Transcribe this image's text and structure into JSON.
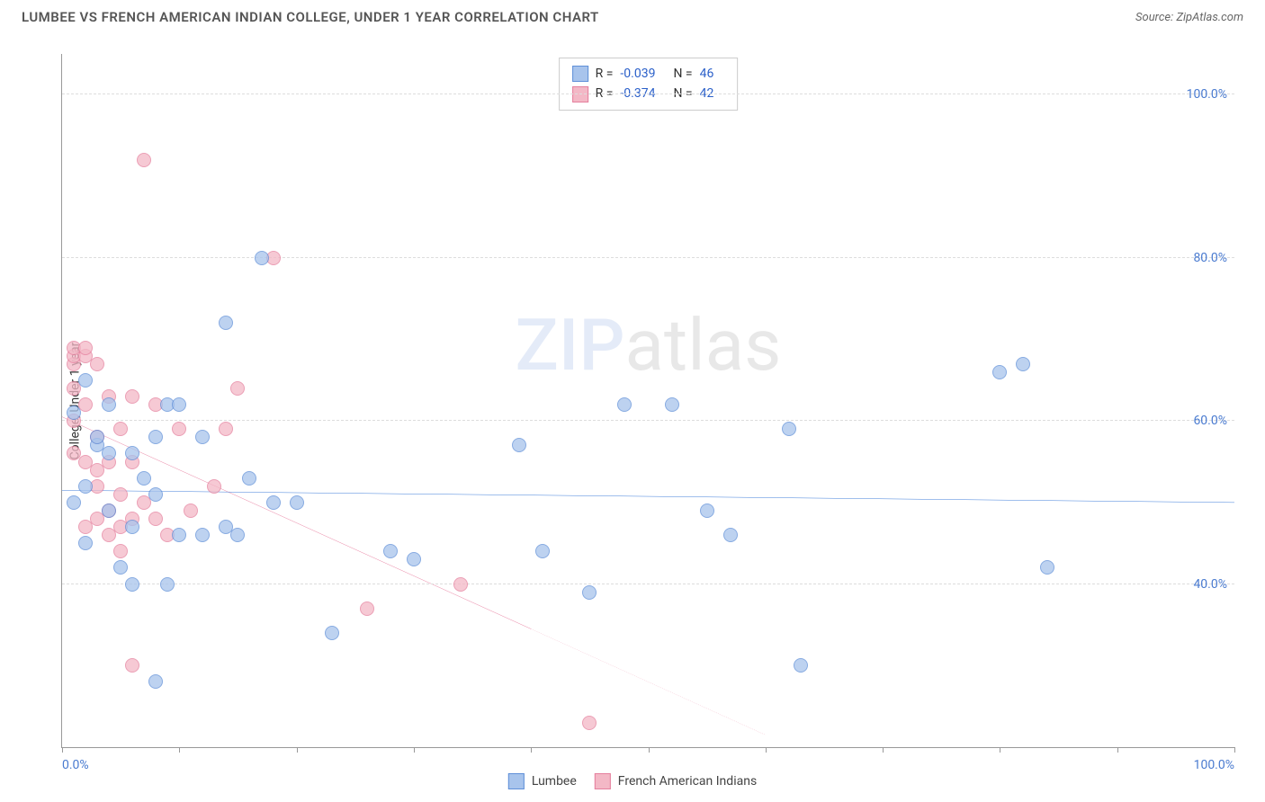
{
  "header": {
    "title": "LUMBEE VS FRENCH AMERICAN INDIAN COLLEGE, UNDER 1 YEAR CORRELATION CHART",
    "source_prefix": "Source: ",
    "source_name": "ZipAtlas.com"
  },
  "chart": {
    "type": "scatter",
    "ylabel": "College, Under 1 year",
    "xlim": [
      0,
      100
    ],
    "ylim": [
      20,
      105
    ],
    "y_gridlines": [
      40,
      60,
      80,
      100
    ],
    "ytick_labels": [
      "40.0%",
      "60.0%",
      "80.0%",
      "100.0%"
    ],
    "x_tick_positions": [
      0,
      10,
      20,
      30,
      40,
      50,
      60,
      70,
      80,
      90,
      100
    ],
    "x_axis_label_left": "0.0%",
    "x_axis_label_right": "100.0%",
    "background_color": "#ffffff",
    "grid_color": "#dddddd",
    "axis_color": "#999999",
    "point_radius": 8,
    "series": [
      {
        "name": "Lumbee",
        "fill": "#a8c4ec",
        "stroke": "#5f8fd8",
        "trend_color": "#2a6fd6",
        "trend_dash_color": "#2a6fd6",
        "trend": {
          "x1": 0,
          "y1": 51.5,
          "x2": 100,
          "y2": 50.0
        },
        "points": [
          [
            1,
            50
          ],
          [
            1,
            61
          ],
          [
            2,
            65
          ],
          [
            2,
            45
          ],
          [
            2,
            52
          ],
          [
            3,
            57
          ],
          [
            3,
            58
          ],
          [
            4,
            62
          ],
          [
            4,
            56
          ],
          [
            4,
            49
          ],
          [
            5,
            42
          ],
          [
            6,
            56
          ],
          [
            6,
            40
          ],
          [
            6,
            47
          ],
          [
            7,
            53
          ],
          [
            8,
            28
          ],
          [
            8,
            51
          ],
          [
            8,
            58
          ],
          [
            9,
            40
          ],
          [
            9,
            62
          ],
          [
            10,
            62
          ],
          [
            10,
            46
          ],
          [
            12,
            46
          ],
          [
            12,
            58
          ],
          [
            14,
            72
          ],
          [
            14,
            47
          ],
          [
            15,
            46
          ],
          [
            16,
            53
          ],
          [
            17,
            80
          ],
          [
            18,
            50
          ],
          [
            20,
            50
          ],
          [
            23,
            34
          ],
          [
            28,
            44
          ],
          [
            30,
            43
          ],
          [
            39,
            57
          ],
          [
            41,
            44
          ],
          [
            45,
            39
          ],
          [
            48,
            62
          ],
          [
            52,
            62
          ],
          [
            55,
            49
          ],
          [
            57,
            46
          ],
          [
            62,
            59
          ],
          [
            63,
            30
          ],
          [
            80,
            66
          ],
          [
            82,
            67
          ],
          [
            84,
            42
          ]
        ]
      },
      {
        "name": "French American Indians",
        "fill": "#f3b8c6",
        "stroke": "#e57f9d",
        "trend_color": "#e0527e",
        "trend_dash_color": "#f1a6bc",
        "trend": {
          "x1": 0,
          "y1": 60.5,
          "x2": 60,
          "y2": 21.5
        },
        "points": [
          [
            1,
            64
          ],
          [
            1,
            67
          ],
          [
            1,
            68
          ],
          [
            1,
            69
          ],
          [
            1,
            60
          ],
          [
            1,
            56
          ],
          [
            2,
            68
          ],
          [
            2,
            69
          ],
          [
            2,
            62
          ],
          [
            2,
            55
          ],
          [
            2,
            47
          ],
          [
            3,
            67
          ],
          [
            3,
            58
          ],
          [
            3,
            54
          ],
          [
            3,
            48
          ],
          [
            3,
            52
          ],
          [
            4,
            63
          ],
          [
            4,
            55
          ],
          [
            4,
            49
          ],
          [
            4,
            46
          ],
          [
            5,
            59
          ],
          [
            5,
            51
          ],
          [
            5,
            47
          ],
          [
            5,
            44
          ],
          [
            6,
            63
          ],
          [
            6,
            55
          ],
          [
            6,
            48
          ],
          [
            6,
            30
          ],
          [
            7,
            50
          ],
          [
            7,
            92
          ],
          [
            8,
            62
          ],
          [
            8,
            48
          ],
          [
            9,
            46
          ],
          [
            10,
            59
          ],
          [
            11,
            49
          ],
          [
            13,
            52
          ],
          [
            14,
            59
          ],
          [
            15,
            64
          ],
          [
            18,
            80
          ],
          [
            26,
            37
          ],
          [
            34,
            40
          ],
          [
            45,
            23
          ]
        ]
      }
    ],
    "stats_legend": {
      "rows": [
        {
          "swatch_fill": "#a8c4ec",
          "swatch_stroke": "#5f8fd8",
          "r_label": "R =",
          "r_value": "-0.039",
          "n_label": "N =",
          "n_value": "46"
        },
        {
          "swatch_fill": "#f3b8c6",
          "swatch_stroke": "#e57f9d",
          "r_label": "R =",
          "r_value": "-0.374",
          "n_label": "N =",
          "n_value": "42"
        }
      ]
    },
    "watermark": {
      "z": "ZIP",
      "rest": "atlas"
    }
  },
  "bottom_legend": {
    "items": [
      {
        "swatch_fill": "#a8c4ec",
        "swatch_stroke": "#5f8fd8",
        "label": "Lumbee"
      },
      {
        "swatch_fill": "#f3b8c6",
        "swatch_stroke": "#e57f9d",
        "label": "French American Indians"
      }
    ]
  }
}
